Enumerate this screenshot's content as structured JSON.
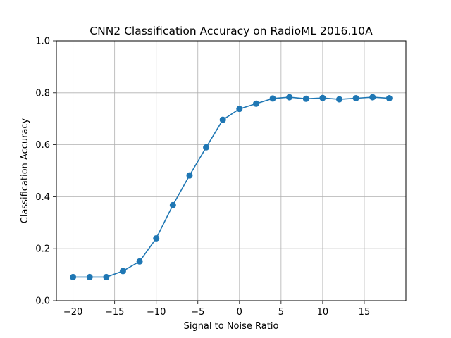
{
  "chart_data": {
    "type": "line",
    "title": "CNN2 Classification Accuracy on RadioML 2016.10A",
    "xlabel": "Signal to Noise Ratio",
    "ylabel": "Classification Accuracy",
    "xlim": [
      -22,
      20
    ],
    "ylim": [
      0.0,
      1.0
    ],
    "xticks": [
      -20,
      -15,
      -10,
      -5,
      0,
      5,
      10,
      15
    ],
    "xtick_labels": [
      "−20",
      "−15",
      "−10",
      "−5",
      "0",
      "5",
      "10",
      "15"
    ],
    "yticks": [
      0.0,
      0.2,
      0.4,
      0.6,
      0.8,
      1.0
    ],
    "ytick_labels": [
      "0.0",
      "0.2",
      "0.4",
      "0.6",
      "0.8",
      "1.0"
    ],
    "grid": true,
    "markers": true,
    "series_color": "#1f77b4",
    "x": [
      -20,
      -18,
      -16,
      -14,
      -12,
      -10,
      -8,
      -6,
      -4,
      -2,
      0,
      2,
      4,
      6,
      8,
      10,
      12,
      14,
      16,
      18
    ],
    "series": [
      {
        "values": [
          0.091,
          0.091,
          0.091,
          0.114,
          0.151,
          0.24,
          0.368,
          0.482,
          0.59,
          0.696,
          0.738,
          0.758,
          0.778,
          0.783,
          0.777,
          0.78,
          0.775,
          0.779,
          0.783,
          0.779
        ]
      }
    ]
  }
}
